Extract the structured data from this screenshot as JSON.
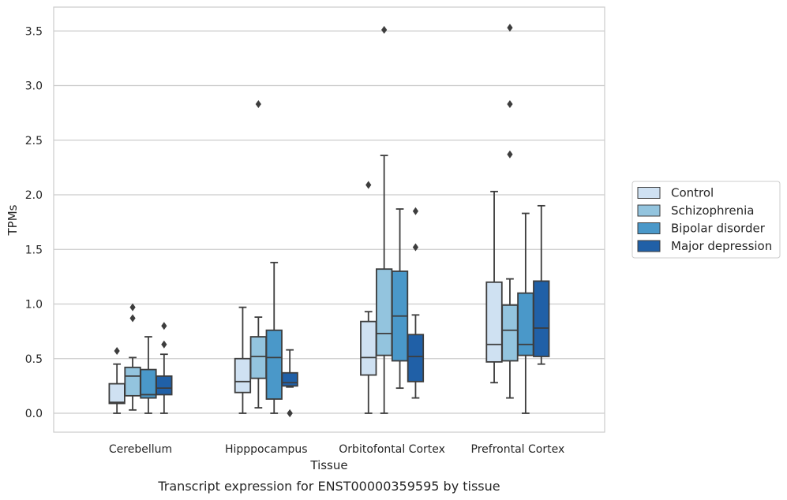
{
  "chart_data": {
    "type": "box",
    "xlabel": "Tissue",
    "ylabel": "TPMs",
    "caption": "Transcript expression for ENST00000359595 by tissue",
    "categories": [
      "Cerebellum",
      "Hipppocampus",
      "Orbitofontal Cortex",
      "Prefrontal Cortex"
    ],
    "ylim": [
      -0.17,
      3.72
    ],
    "yticks": [
      "0.0",
      "0.5",
      "1.0",
      "1.5",
      "2.0",
      "2.5",
      "3.0",
      "3.5"
    ],
    "grid": true,
    "legend": {
      "position": "right"
    },
    "series": [
      {
        "name": "Control",
        "color": "#cfe1f2",
        "boxes": [
          {
            "whisker_low": 0.0,
            "q1": 0.09,
            "median": 0.1,
            "q3": 0.27,
            "whisker_high": 0.45,
            "outliers": [
              0.57
            ]
          },
          {
            "whisker_low": 0.0,
            "q1": 0.19,
            "median": 0.29,
            "q3": 0.5,
            "whisker_high": 0.97,
            "outliers": []
          },
          {
            "whisker_low": 0.0,
            "q1": 0.35,
            "median": 0.51,
            "q3": 0.84,
            "whisker_high": 0.93,
            "outliers": [
              2.09
            ]
          },
          {
            "whisker_low": 0.28,
            "q1": 0.47,
            "median": 0.63,
            "q3": 1.2,
            "whisker_high": 2.03,
            "outliers": []
          }
        ]
      },
      {
        "name": "Schizophrenia",
        "color": "#93c4de",
        "boxes": [
          {
            "whisker_low": 0.03,
            "q1": 0.16,
            "median": 0.34,
            "q3": 0.42,
            "whisker_high": 0.51,
            "outliers": [
              0.87,
              0.97
            ]
          },
          {
            "whisker_low": 0.05,
            "q1": 0.32,
            "median": 0.52,
            "q3": 0.7,
            "whisker_high": 0.88,
            "outliers": [
              2.83
            ]
          },
          {
            "whisker_low": 0.0,
            "q1": 0.53,
            "median": 0.73,
            "q3": 1.32,
            "whisker_high": 2.36,
            "outliers": [
              3.51
            ]
          },
          {
            "whisker_low": 0.14,
            "q1": 0.48,
            "median": 0.76,
            "q3": 0.99,
            "whisker_high": 1.23,
            "outliers": [
              2.37,
              2.83,
              3.53
            ]
          }
        ]
      },
      {
        "name": "Bipolar disorder",
        "color": "#4a98c9",
        "boxes": [
          {
            "whisker_low": 0.0,
            "q1": 0.14,
            "median": 0.17,
            "q3": 0.4,
            "whisker_high": 0.7,
            "outliers": []
          },
          {
            "whisker_low": 0.0,
            "q1": 0.13,
            "median": 0.51,
            "q3": 0.76,
            "whisker_high": 1.38,
            "outliers": []
          },
          {
            "whisker_low": 0.23,
            "q1": 0.48,
            "median": 0.89,
            "q3": 1.3,
            "whisker_high": 1.87,
            "outliers": []
          },
          {
            "whisker_low": 0.0,
            "q1": 0.53,
            "median": 0.63,
            "q3": 1.1,
            "whisker_high": 1.83,
            "outliers": []
          }
        ]
      },
      {
        "name": "Major depression",
        "color": "#2060a7",
        "boxes": [
          {
            "whisker_low": 0.0,
            "q1": 0.17,
            "median": 0.23,
            "q3": 0.34,
            "whisker_high": 0.54,
            "outliers": [
              0.63,
              0.8
            ]
          },
          {
            "whisker_low": 0.24,
            "q1": 0.25,
            "median": 0.28,
            "q3": 0.37,
            "whisker_high": 0.58,
            "outliers": [
              0.0,
              0.0
            ]
          },
          {
            "whisker_low": 0.14,
            "q1": 0.29,
            "median": 0.52,
            "q3": 0.72,
            "whisker_high": 0.9,
            "outliers": [
              1.52,
              1.85
            ]
          },
          {
            "whisker_low": 0.45,
            "q1": 0.52,
            "median": 0.78,
            "q3": 1.21,
            "whisker_high": 1.9,
            "outliers": []
          }
        ]
      }
    ]
  }
}
